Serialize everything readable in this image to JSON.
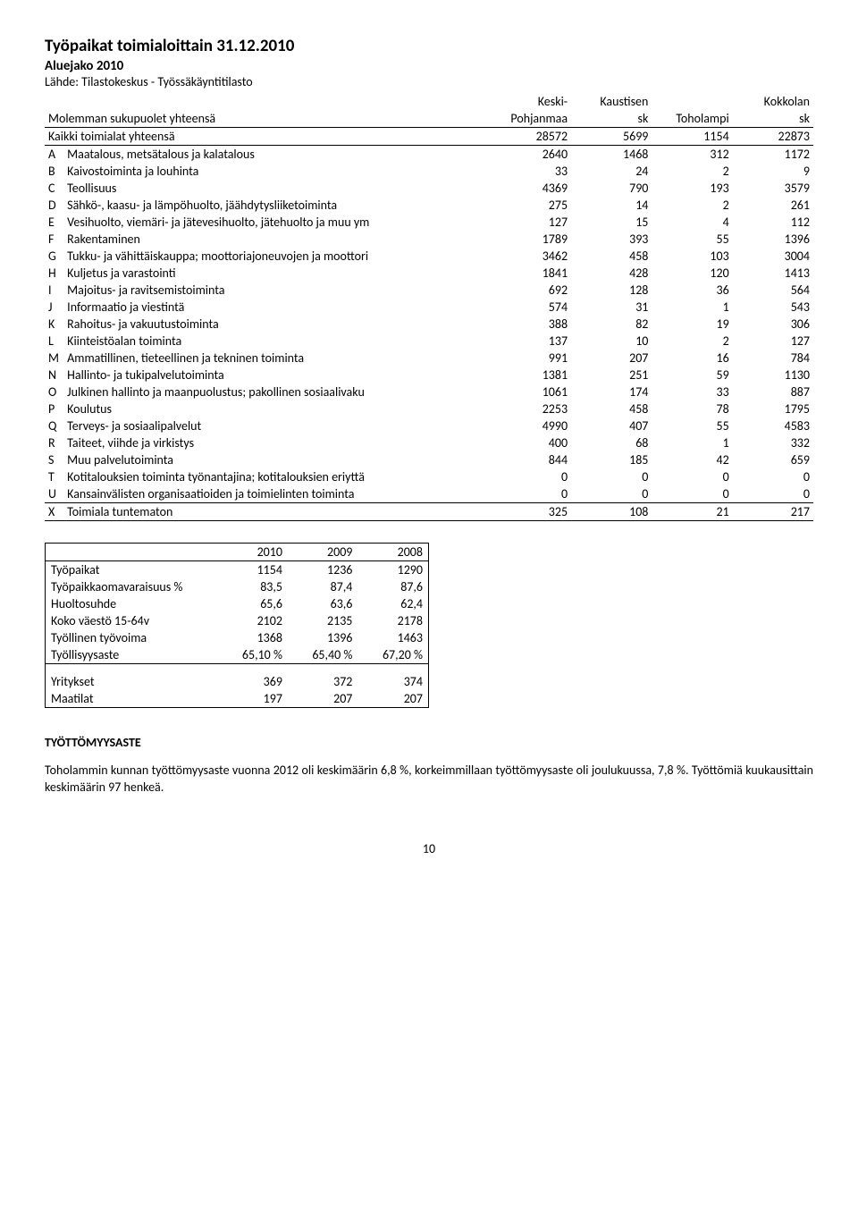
{
  "title": "Työpaikat toimialoittain 31.12.2010",
  "subtitle": "Aluejako 2010",
  "source": "Lähde: Tilastokeskus - Työssäkäyntitilasto",
  "page_number": "10",
  "main_table": {
    "header_top": [
      "",
      "Keski-",
      "Kaustisen",
      "",
      "Kokkolan"
    ],
    "header_bottom": [
      "Molemman sukupuolet yhteensä",
      "Pohjanmaa",
      "sk",
      "Toholampi",
      "sk"
    ],
    "total_row": [
      "Kaikki toimialat yhteensä",
      "28572",
      "5699",
      "1154",
      "22873"
    ],
    "rows": [
      [
        "A",
        "Maatalous, metsätalous ja kalatalous",
        "2640",
        "1468",
        "312",
        "1172"
      ],
      [
        "B",
        "Kaivostoiminta ja louhinta",
        "33",
        "24",
        "2",
        "9"
      ],
      [
        "C",
        "Teollisuus",
        "4369",
        "790",
        "193",
        "3579"
      ],
      [
        "D",
        "Sähkö-, kaasu- ja lämpöhuolto, jäähdytysliiketoiminta",
        "275",
        "14",
        "2",
        "261"
      ],
      [
        "E",
        "Vesihuolto, viemäri- ja jätevesihuolto, jätehuolto ja muu ym",
        "127",
        "15",
        "4",
        "112"
      ],
      [
        "F",
        "Rakentaminen",
        "1789",
        "393",
        "55",
        "1396"
      ],
      [
        "G",
        "Tukku- ja vähittäiskauppa; moottoriajoneuvojen ja moottori",
        "3462",
        "458",
        "103",
        "3004"
      ],
      [
        "H",
        "Kuljetus ja varastointi",
        "1841",
        "428",
        "120",
        "1413"
      ],
      [
        "I",
        "Majoitus- ja ravitsemistoiminta",
        "692",
        "128",
        "36",
        "564"
      ],
      [
        "J",
        "Informaatio ja viestintä",
        "574",
        "31",
        "1",
        "543"
      ],
      [
        "K",
        "Rahoitus- ja vakuutustoiminta",
        "388",
        "82",
        "19",
        "306"
      ],
      [
        "L",
        "Kiinteistöalan toiminta",
        "137",
        "10",
        "2",
        "127"
      ],
      [
        "M",
        "Ammatillinen, tieteellinen ja tekninen toiminta",
        "991",
        "207",
        "16",
        "784"
      ],
      [
        "N",
        "Hallinto- ja tukipalvelutoiminta",
        "1381",
        "251",
        "59",
        "1130"
      ],
      [
        "O",
        "Julkinen hallinto ja maanpuolustus; pakollinen sosiaalivaku",
        "1061",
        "174",
        "33",
        "887"
      ],
      [
        "P",
        "Koulutus",
        "2253",
        "458",
        "78",
        "1795"
      ],
      [
        "Q",
        "Terveys- ja sosiaalipalvelut",
        "4990",
        "407",
        "55",
        "4583"
      ],
      [
        "R",
        "Taiteet, viihde ja virkistys",
        "400",
        "68",
        "1",
        "332"
      ],
      [
        "S",
        "Muu palvelutoiminta",
        "844",
        "185",
        "42",
        "659"
      ],
      [
        "T",
        "Kotitalouksien toiminta työnantajina; kotitalouksien eriyttä",
        "0",
        "0",
        "0",
        "0"
      ],
      [
        "U",
        "Kansainvälisten organisaatioiden ja toimielinten toiminta",
        "0",
        "0",
        "0",
        "0"
      ],
      [
        "X",
        "Toimiala tuntematon",
        "325",
        "108",
        "21",
        "217"
      ]
    ]
  },
  "small_table": {
    "years": [
      "2010",
      "2009",
      "2008"
    ],
    "rows": [
      [
        "Työpaikat",
        "1154",
        "1236",
        "1290"
      ],
      [
        "Työpaikkaomavaraisuus %",
        "83,5",
        "87,4",
        "87,6"
      ],
      [
        "Huoltosuhde",
        "65,6",
        "63,6",
        "62,4"
      ],
      [
        "Koko väestö 15-64v",
        "2102",
        "2135",
        "2178"
      ],
      [
        "Työllinen työvoima",
        "1368",
        "1396",
        "1463"
      ],
      [
        "Työllisyysaste",
        "65,10 %",
        "65,40 %",
        "67,20 %"
      ]
    ],
    "rows2": [
      [
        "Yritykset",
        "369",
        "372",
        "374"
      ],
      [
        "Maatilat",
        "197",
        "207",
        "207"
      ]
    ]
  },
  "section_title": "TYÖTTÖMYYSASTE",
  "body_text": "Toholammin kunnan työttömyysaste vuonna 2012 oli keskimäärin 6,8 %, korkeimmillaan työttömyysaste oli joulukuussa, 7,8 %. Työttömiä kuukausittain keskimäärin 97 henkeä."
}
